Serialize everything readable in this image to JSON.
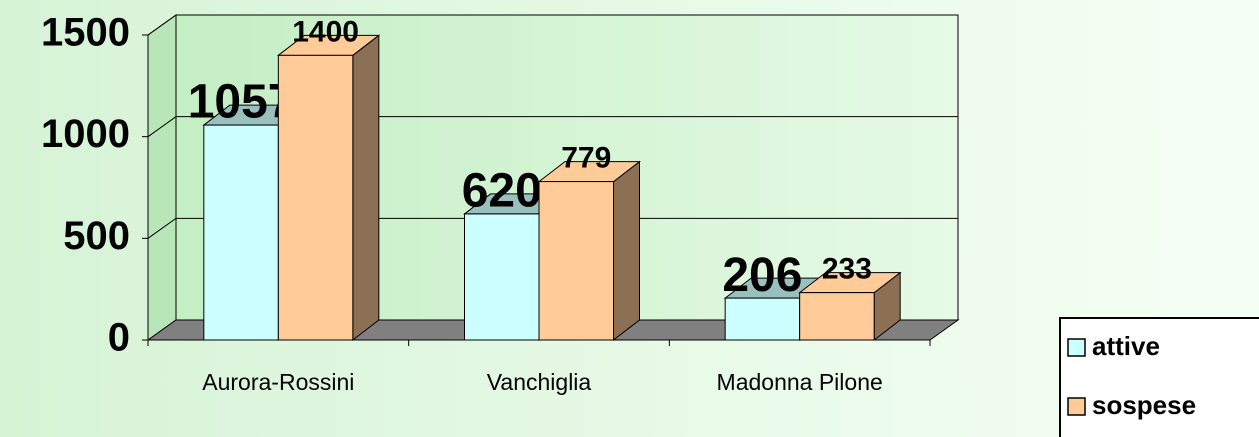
{
  "chart_data": {
    "type": "bar3d",
    "categories": [
      "Aurora-Rossini",
      "Vanchiglia",
      "Madonna Pilone"
    ],
    "series": [
      {
        "name": "attive",
        "color": "#ccffff",
        "values": [
          1057,
          620,
          206
        ]
      },
      {
        "name": "sospese",
        "color": "#ffcc99",
        "values": [
          1400,
          779,
          233
        ]
      }
    ],
    "ylim": [
      0,
      1500
    ],
    "yticks": [
      0,
      500,
      1000,
      1500
    ],
    "grid": true,
    "legend": "right"
  }
}
